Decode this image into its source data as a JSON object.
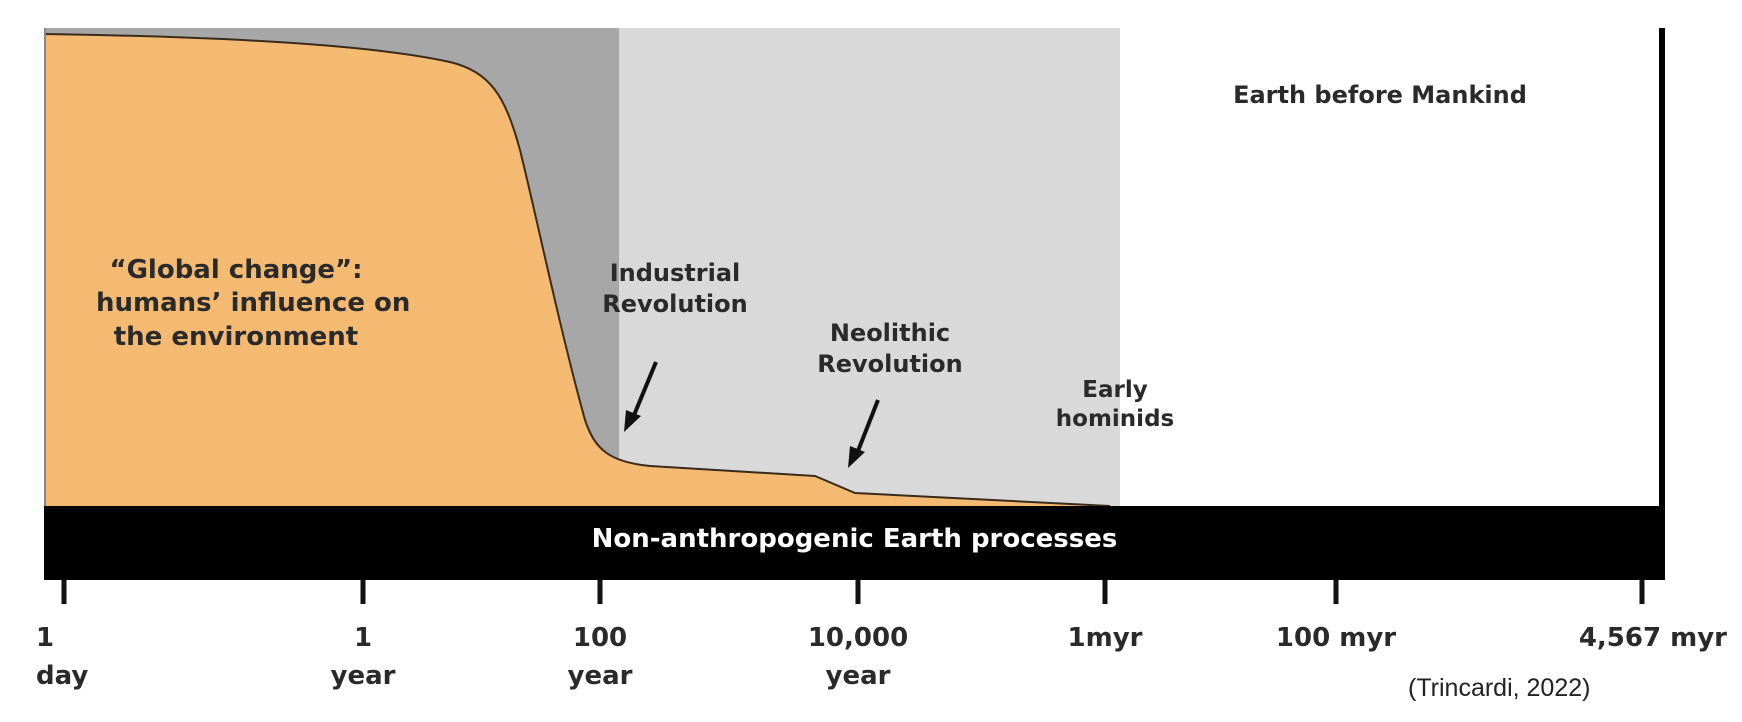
{
  "chart_data": {
    "type": "area",
    "title": "",
    "xscale": "log",
    "xlabel": "",
    "ylabel": "",
    "x_ticks": [
      "1 day",
      "1 year",
      "100 year",
      "10,000 year",
      "1myr",
      "100 myr",
      "4,567 myr"
    ],
    "series": [
      {
        "values_note": "",
        "points": [
          {
            "x": "1 day",
            "y": 1.0
          },
          {
            "x": "1 year",
            "y": 0.93
          },
          {
            "x": "10 year",
            "y": 0.78
          },
          {
            "x": "100 year",
            "y": 0.1
          },
          {
            "x": "1,000 year",
            "y": 0.07
          },
          {
            "x": "5,000 year",
            "y": 0.07
          },
          {
            "x": "10,000 year",
            "y": 0.03
          },
          {
            "x": "1myr",
            "y": 0.0
          }
        ]
      }
    ],
    "colors": {
      "human_influence": "#F4BA72",
      "dark_gray_region": "#A7A7A7",
      "light_gray_region": "#D9D9D9",
      "band": "#000000"
    }
  },
  "labels": {
    "global_change": [
      "“Global change”:",
      "humans’ influence on",
      "the environment"
    ],
    "industrial": [
      "Industrial",
      "Revolution"
    ],
    "neolithic": [
      "Neolithic",
      "Revolution"
    ],
    "early_hominids": [
      "Early",
      "hominids"
    ],
    "earth_before": "Earth before Mankind",
    "band": "Non-anthropogenic Earth processes"
  },
  "ticks": [
    {
      "line1": "1",
      "line2": "day"
    },
    {
      "line1": "1",
      "line2": "year"
    },
    {
      "line1": "100",
      "line2": "year"
    },
    {
      "line1": "10,000",
      "line2": "year"
    },
    {
      "line1": "1myr",
      "line2": ""
    },
    {
      "line1": "100 myr",
      "line2": ""
    },
    {
      "line1": "4,567 myr",
      "line2": ""
    }
  ],
  "citation": "(Trincardi, 2022)"
}
